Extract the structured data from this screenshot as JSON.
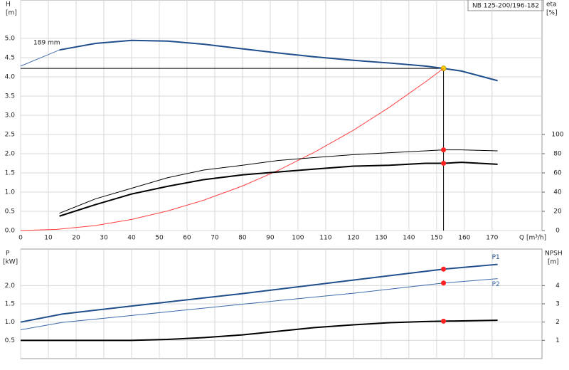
{
  "chart_data": [
    {
      "type": "line",
      "title": "NB 125-200/196-182",
      "ylabel": "H",
      "yunit": "[m]",
      "y2label": "eta",
      "y2unit": "[%]",
      "xlabel": "Q [m³/h]",
      "annotations": [
        "189 mm"
      ],
      "xlim": [
        0,
        188
      ],
      "xticks": [
        0,
        10,
        20,
        30,
        40,
        50,
        60,
        70,
        80,
        90,
        100,
        110,
        120,
        130,
        140,
        150,
        160,
        170
      ],
      "ylim": [
        0,
        6
      ],
      "yticks": [
        {
          "value": 0,
          "label": "0.0"
        },
        0.5,
        {
          "value": 1,
          "label": "1.0"
        },
        1.5,
        {
          "value": 2,
          "label": "2.0"
        },
        2.5,
        {
          "value": 3,
          "label": "3.0"
        },
        3.5,
        {
          "value": 4,
          "label": "4.0"
        },
        4.5,
        {
          "value": 5,
          "label": "5.0"
        }
      ],
      "y2lim": [
        0,
        240
      ],
      "y2ticks": [
        0,
        20,
        40,
        60,
        80,
        100
      ],
      "grid": true,
      "operating_point": {
        "x": 152.5,
        "y": 4.22
      },
      "series": [
        {
          "color": "#4a72b0",
          "width": 1,
          "x": [
            0,
            14
          ],
          "values": [
            4.28,
            4.7
          ]
        },
        {
          "color": "#1f4e8c",
          "width": 2,
          "marker_color": "#ffd700",
          "x": [
            14,
            27,
            40,
            53,
            66,
            80,
            93,
            106,
            120,
            133,
            146,
            152.5,
            159,
            172
          ],
          "values": [
            4.7,
            4.87,
            4.95,
            4.93,
            4.85,
            4.73,
            4.62,
            4.52,
            4.43,
            4.36,
            4.28,
            4.22,
            4.15,
            3.9
          ]
        },
        {
          "color": "#ff4040",
          "width": 1,
          "x": [
            0,
            13,
            27,
            40,
            53,
            66,
            80,
            93,
            106,
            120,
            133,
            146,
            152.5
          ],
          "values": [
            0,
            0.03,
            0.13,
            0.29,
            0.51,
            0.79,
            1.16,
            1.57,
            2.04,
            2.61,
            3.21,
            3.87,
            4.22
          ]
        },
        {
          "color": "#000000",
          "width": 1,
          "axis": "y2",
          "marker_color": "#ff2020",
          "x": [
            14,
            27,
            40,
            53,
            66,
            80,
            93,
            106,
            120,
            133,
            146,
            152.5,
            159,
            172
          ],
          "values": [
            18,
            33,
            44,
            55,
            63,
            68,
            73,
            76,
            79,
            81,
            83,
            84,
            84,
            83
          ]
        },
        {
          "color": "#000000",
          "width": 2,
          "axis": "y2",
          "marker_color": "#ff2020",
          "x": [
            14,
            27,
            40,
            53,
            66,
            80,
            93,
            106,
            120,
            133,
            146,
            152.5,
            159,
            172
          ],
          "values": [
            15,
            27,
            38,
            46,
            53,
            58,
            61,
            64,
            67,
            68,
            70,
            70,
            71,
            69
          ]
        }
      ]
    },
    {
      "type": "line",
      "ylabel": "P",
      "yunit": "[kW]",
      "y2label": "NPSH",
      "y2unit": "[m]",
      "xlim": [
        0,
        188
      ],
      "xticks": [
        0,
        10,
        20,
        30,
        40,
        50,
        60,
        70,
        80,
        90,
        100,
        110,
        120,
        130,
        140,
        150,
        160,
        170
      ],
      "show_xtick_labels": false,
      "ylim": [
        0,
        3
      ],
      "yticks": [
        0.5,
        {
          "value": 1,
          "label": "1.0"
        },
        1.5,
        {
          "value": 2,
          "label": "2.0"
        }
      ],
      "y2lim": [
        0,
        6
      ],
      "y2ticks": [
        1,
        2,
        3,
        4
      ],
      "grid": true,
      "operating_point": {
        "x": 152.5
      },
      "series": [
        {
          "name": "P1",
          "color": "#1f4e8c",
          "width": 2,
          "marker_color": "#ff2020",
          "x": [
            0,
            15,
            40,
            80,
            120,
            152.5,
            172
          ],
          "values": [
            1.0,
            1.22,
            1.44,
            1.78,
            2.15,
            2.45,
            2.58
          ]
        },
        {
          "name": "P2",
          "color": "#3a6aa8",
          "width": 1,
          "marker_color": "#ff2020",
          "x": [
            0,
            15,
            40,
            80,
            120,
            152.5,
            172
          ],
          "values": [
            0.79,
            0.99,
            1.18,
            1.49,
            1.79,
            2.07,
            2.19
          ]
        },
        {
          "color": "#000000",
          "width": 2,
          "axis": "y2",
          "marker_color": "#ff2020",
          "x": [
            0,
            40,
            53,
            66,
            80,
            93,
            106,
            120,
            133,
            146,
            152.5,
            172
          ],
          "values": [
            1.0,
            1.0,
            1.05,
            1.15,
            1.3,
            1.5,
            1.7,
            1.85,
            1.97,
            2.03,
            2.05,
            2.1
          ]
        }
      ]
    }
  ]
}
